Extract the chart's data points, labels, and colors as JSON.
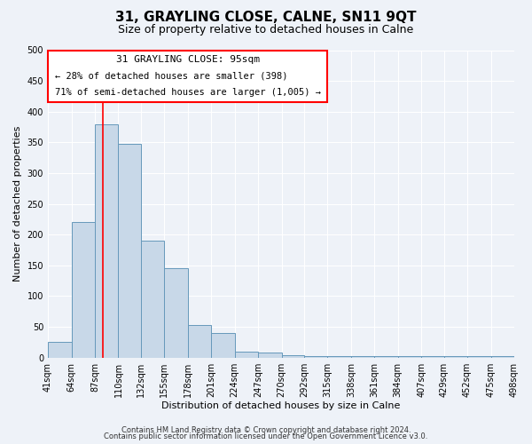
{
  "title": "31, GRAYLING CLOSE, CALNE, SN11 9QT",
  "subtitle": "Size of property relative to detached houses in Calne",
  "xlabel": "Distribution of detached houses by size in Calne",
  "ylabel": "Number of detached properties",
  "bin_edges": [
    41,
    64,
    87,
    110,
    132,
    155,
    178,
    201,
    224,
    247,
    270,
    292,
    315,
    338,
    361,
    384,
    407,
    429,
    452,
    475,
    498
  ],
  "bar_heights": [
    25,
    220,
    380,
    348,
    190,
    145,
    53,
    40,
    10,
    8,
    4,
    2,
    2,
    2,
    2,
    2,
    2,
    2,
    2,
    2
  ],
  "bar_color": "#c8d8e8",
  "bar_edge_color": "#6699bb",
  "red_line_x": 95,
  "ylim": [
    0,
    500
  ],
  "yticks": [
    0,
    50,
    100,
    150,
    200,
    250,
    300,
    350,
    400,
    450,
    500
  ],
  "annotation_box_text_line1": "31 GRAYLING CLOSE: 95sqm",
  "annotation_box_text_line2": "← 28% of detached houses are smaller (398)",
  "annotation_box_text_line3": "71% of semi-detached houses are larger (1,005) →",
  "footer_line1": "Contains HM Land Registry data © Crown copyright and database right 2024.",
  "footer_line2": "Contains public sector information licensed under the Open Government Licence v3.0.",
  "background_color": "#eef2f8",
  "grid_color": "#ffffff",
  "title_fontsize": 11,
  "subtitle_fontsize": 9,
  "axis_label_fontsize": 8,
  "tick_fontsize": 7,
  "annotation_fontsize": 8,
  "footer_fontsize": 6
}
